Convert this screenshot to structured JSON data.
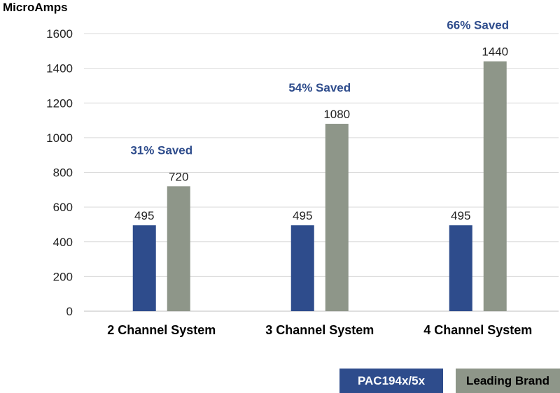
{
  "chart_data": {
    "type": "bar",
    "ylabel": "MicroAmps",
    "ylim": [
      0,
      1600
    ],
    "yticks": [
      0,
      200,
      400,
      600,
      800,
      1000,
      1200,
      1400,
      1600
    ],
    "grid": true,
    "categories": [
      "2 Channel System",
      "3 Channel System",
      "4 Channel System"
    ],
    "series": [
      {
        "name": "PAC194x/5x",
        "color": "#2e4c8c",
        "values": [
          495,
          495,
          495
        ],
        "labels": [
          "495",
          "495",
          "495"
        ]
      },
      {
        "name": "Leading Brand",
        "color": "#8e9689",
        "values": [
          720,
          1080,
          1440
        ],
        "labels": [
          "720",
          "1080",
          "1440"
        ]
      }
    ],
    "annotations": [
      {
        "category": "2 Channel System",
        "text": "31% Saved",
        "color": "#2e4c8c"
      },
      {
        "category": "3 Channel System",
        "text": "54% Saved",
        "color": "#2e4c8c"
      },
      {
        "category": "4 Channel System",
        "text": "66% Saved",
        "color": "#2e4c8c"
      }
    ],
    "legend_position": "bottom-right"
  }
}
